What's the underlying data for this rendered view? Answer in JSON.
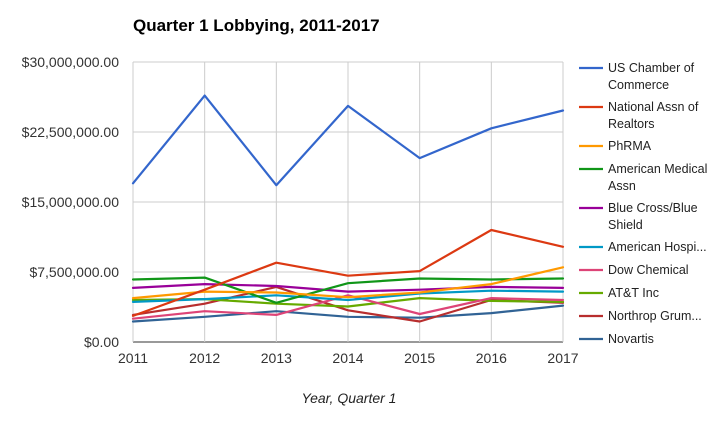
{
  "chart_data": {
    "type": "line",
    "title": "Quarter 1 Lobbying, 2011-2017",
    "xlabel": "Year, Quarter 1",
    "ylabel": "",
    "x": [
      "2011",
      "2012",
      "2013",
      "2014",
      "2015",
      "2016",
      "2017"
    ],
    "ylim": [
      0,
      30000000
    ],
    "y_ticks": [
      "$0.00",
      "$7,500,000.00",
      "$15,000,000.00",
      "$22,500,000.00",
      "$30,000,000.00"
    ],
    "grid": true,
    "legend_position": "right",
    "series": [
      {
        "name": "US Chamber of Commerce",
        "legend_lines": [
          "US Chamber of",
          "Commerce"
        ],
        "color": "#3366cc",
        "values": [
          17000000,
          26400000,
          16800000,
          25300000,
          19700000,
          22900000,
          24800000
        ]
      },
      {
        "name": "National Assn of Realtors",
        "legend_lines": [
          "National Assn of",
          "Realtors"
        ],
        "color": "#dc3912",
        "values": [
          2800000,
          5600000,
          8500000,
          7100000,
          7600000,
          12000000,
          10200000
        ]
      },
      {
        "name": "PhRMA",
        "legend_lines": [
          "PhRMA"
        ],
        "color": "#ff9900",
        "values": [
          4700000,
          5400000,
          5300000,
          4800000,
          5300000,
          6200000,
          8000000
        ]
      },
      {
        "name": "American Medical Assn",
        "legend_lines": [
          "American Medical",
          "Assn"
        ],
        "color": "#109618",
        "values": [
          6700000,
          6900000,
          4200000,
          6300000,
          6800000,
          6700000,
          6800000
        ]
      },
      {
        "name": "Blue Cross/Blue Shield",
        "legend_lines": [
          "Blue Cross/Blue",
          "Shield"
        ],
        "color": "#990099",
        "values": [
          5800000,
          6200000,
          6000000,
          5400000,
          5600000,
          5900000,
          5800000
        ]
      },
      {
        "name": "American Hospi...",
        "legend_lines": [
          "American Hospi..."
        ],
        "color": "#0099c6",
        "values": [
          4300000,
          4600000,
          5000000,
          4500000,
          5200000,
          5500000,
          5400000
        ]
      },
      {
        "name": "Dow Chemical",
        "legend_lines": [
          "Dow Chemical"
        ],
        "color": "#dd4477",
        "values": [
          2500000,
          3300000,
          2900000,
          5000000,
          3000000,
          4700000,
          4500000
        ]
      },
      {
        "name": "AT&T Inc",
        "legend_lines": [
          "AT&T Inc"
        ],
        "color": "#66aa00",
        "values": [
          4500000,
          4600000,
          4100000,
          3800000,
          4700000,
          4400000,
          4300000
        ]
      },
      {
        "name": "Northrop Grum...",
        "legend_lines": [
          "Northrop Grum..."
        ],
        "color": "#b82e2e",
        "values": [
          2900000,
          4100000,
          5900000,
          3400000,
          2200000,
          4500000,
          4200000
        ]
      },
      {
        "name": "Novartis",
        "legend_lines": [
          "Novartis"
        ],
        "color": "#316395",
        "values": [
          2200000,
          2700000,
          3300000,
          2700000,
          2600000,
          3100000,
          3900000
        ]
      }
    ]
  }
}
